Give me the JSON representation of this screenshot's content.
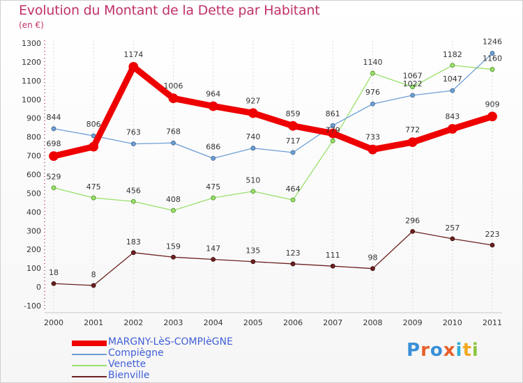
{
  "title": "Evolution du Montant de la Dette par Habitant",
  "unit": "(en €)",
  "logo": {
    "text": "Proxiti",
    "colors": [
      "#3a8fd8",
      "#e8602a",
      "#3a8fd8",
      "#e8602a",
      "#2bb0d8",
      "#f2a81f",
      "#8cc63f"
    ]
  },
  "chart_data": {
    "type": "line",
    "title": "Evolution du Montant de la Dette par Habitant",
    "ylabel": "(en €)",
    "xlabel": "",
    "x": [
      "2000",
      "2001",
      "2002",
      "2003",
      "2004",
      "2005",
      "2006",
      "2007",
      "2008",
      "2009",
      "2010",
      "2011"
    ],
    "ylim": [
      -100,
      1300
    ],
    "yticks": [
      "-100",
      "0",
      "100",
      "200",
      "300",
      "400",
      "500",
      "600",
      "700",
      "800",
      "900",
      "1000",
      "1100",
      "1200",
      "1300"
    ],
    "grid": "vertical dashed",
    "legend_position": "bottom-left",
    "series": [
      {
        "name": "MARGNY-LèS-COMPIèGNE",
        "color": "#ee0000",
        "values": [
          698,
          748,
          1174,
          1006,
          964,
          927,
          859,
          819,
          733,
          772,
          843,
          909
        ],
        "labels": [
          "698",
          "",
          "1174",
          "1006",
          "964",
          "927",
          "859",
          "",
          "733",
          "772",
          "843",
          "909"
        ]
      },
      {
        "name": "Compiègne",
        "color": "#6c9fd6",
        "values": [
          844,
          806,
          763,
          768,
          686,
          740,
          717,
          861,
          976,
          1022,
          1047,
          1246
        ],
        "labels": [
          "844",
          "806",
          "763",
          "768",
          "686",
          "740",
          "717",
          "861",
          "976",
          "1022",
          "1047",
          "1246"
        ]
      },
      {
        "name": "Venette",
        "color": "#99e06a",
        "values": [
          529,
          475,
          456,
          408,
          475,
          510,
          464,
          779,
          1140,
          1067,
          1182,
          1160
        ],
        "labels": [
          "529",
          "475",
          "456",
          "408",
          "475",
          "510",
          "464",
          "779",
          "1140",
          "1067",
          "1182",
          "1160"
        ]
      },
      {
        "name": "Bienville",
        "color": "#6b2020",
        "values": [
          18,
          8,
          183,
          159,
          147,
          135,
          123,
          111,
          98,
          296,
          257,
          223
        ],
        "labels": [
          "18",
          "8",
          "183",
          "159",
          "147",
          "135",
          "123",
          "111",
          "98",
          "296",
          "257",
          "223"
        ]
      }
    ]
  }
}
